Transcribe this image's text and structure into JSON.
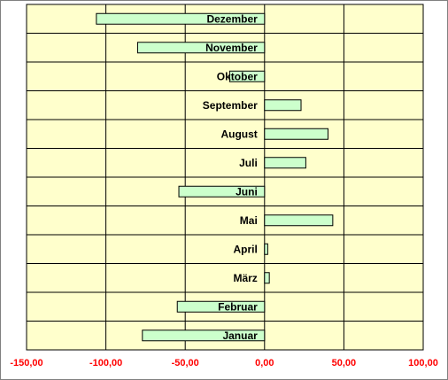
{
  "colors": {
    "plot_bg": "#FFFFCC",
    "bar_fill": "#CCFFCC",
    "bar_stroke": "#000000",
    "grid": "#000000",
    "tick_label": "#FF0000",
    "category_label": "#000000"
  },
  "chart_data": {
    "type": "bar",
    "orientation": "horizontal",
    "categories": [
      "Januar",
      "Februar",
      "März",
      "April",
      "Mai",
      "Juni",
      "Juli",
      "August",
      "September",
      "Oktober",
      "November",
      "Dezember"
    ],
    "series": [
      {
        "values": [
          -77,
          -55,
          3,
          2,
          43,
          -54,
          26,
          40,
          23,
          -22,
          -80,
          -106
        ]
      }
    ],
    "xlim": [
      -150,
      100
    ],
    "xticks": [
      -150,
      -100,
      -50,
      0,
      50,
      100
    ],
    "xtick_labels": [
      "-150,00",
      "-100,00",
      "-50,00",
      "0,00",
      "50,00",
      "100,00"
    ],
    "grid": true,
    "legend": "none",
    "title": "",
    "xlabel": "",
    "ylabel": ""
  }
}
